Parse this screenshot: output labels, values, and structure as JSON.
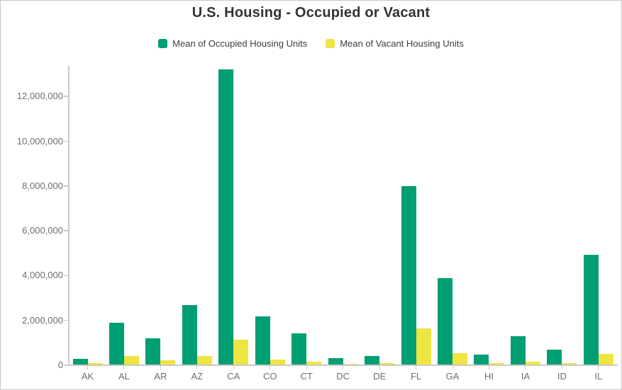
{
  "title": "U.S. Housing - Occupied or Vacant",
  "colors": {
    "occupied": "#009e73",
    "vacant": "#f0e442",
    "axis": "#c9c9c9",
    "axis_text": "#6e6e6e",
    "title_text": "#323232",
    "legend_text": "#3d3d3d",
    "card_border": "#c6c6c6"
  },
  "chart_data": {
    "type": "bar",
    "title": "U.S. Housing - Occupied or Vacant",
    "xlabel": "",
    "ylabel": "",
    "grid": false,
    "legend_position": "top-center",
    "ylim": [
      0,
      13400000
    ],
    "categories": [
      "AK",
      "AL",
      "AR",
      "AZ",
      "CA",
      "CO",
      "CT",
      "DC",
      "DE",
      "FL",
      "GA",
      "HI",
      "IA",
      "ID",
      "IL"
    ],
    "series": [
      {
        "name": "Mean of Occupied Housing Units",
        "color": "#009e73",
        "values": [
          250000,
          1870000,
          1180000,
          2650000,
          13180000,
          2140000,
          1400000,
          290000,
          370000,
          7960000,
          3840000,
          450000,
          1260000,
          650000,
          4890000
        ]
      },
      {
        "name": "Mean of Vacant Housing Units",
        "color": "#f0e442",
        "values": [
          70000,
          390000,
          200000,
          385000,
          1110000,
          220000,
          130000,
          30000,
          60000,
          1620000,
          495000,
          72000,
          125000,
          72000,
          480000
        ]
      }
    ],
    "y_ticks": {
      "values": [
        0,
        2000000,
        4000000,
        6000000,
        8000000,
        10000000,
        12000000
      ],
      "labels": [
        "0",
        "2,000,000",
        "4,000,000",
        "6,000,000",
        "8,000,000",
        "10,000,000",
        "12,000,000"
      ]
    }
  }
}
